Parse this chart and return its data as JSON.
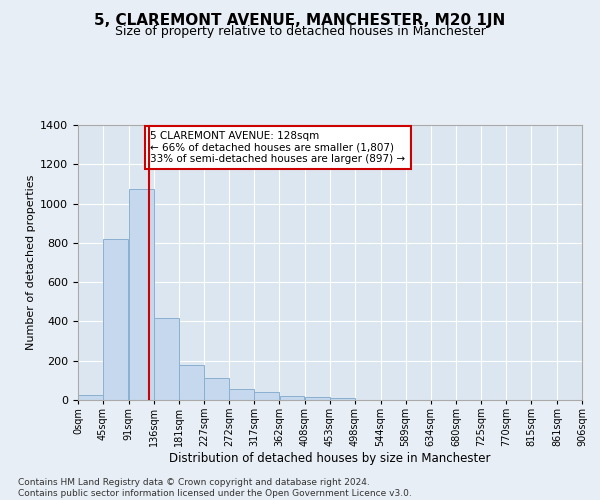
{
  "title": "5, CLAREMONT AVENUE, MANCHESTER, M20 1JN",
  "subtitle": "Size of property relative to detached houses in Manchester",
  "xlabel": "Distribution of detached houses by size in Manchester",
  "ylabel": "Number of detached properties",
  "bar_color": "#c5d8ed",
  "bar_edge_color": "#8ab0d0",
  "marker_line_color": "#cc0000",
  "marker_value": 128,
  "annotation_text": "5 CLAREMONT AVENUE: 128sqm\n← 66% of detached houses are smaller (1,807)\n33% of semi-detached houses are larger (897) →",
  "annotation_box_color": "#ffffff",
  "annotation_box_edge_color": "#cc0000",
  "footnote": "Contains HM Land Registry data © Crown copyright and database right 2024.\nContains public sector information licensed under the Open Government Licence v3.0.",
  "bins": [
    0,
    45,
    91,
    136,
    181,
    227,
    272,
    317,
    362,
    408,
    453,
    498,
    544,
    589,
    634,
    680,
    725,
    770,
    815,
    861,
    906
  ],
  "bin_labels": [
    "0sqm",
    "45sqm",
    "91sqm",
    "136sqm",
    "181sqm",
    "227sqm",
    "272sqm",
    "317sqm",
    "362sqm",
    "408sqm",
    "453sqm",
    "498sqm",
    "544sqm",
    "589sqm",
    "634sqm",
    "680sqm",
    "725sqm",
    "770sqm",
    "815sqm",
    "861sqm",
    "906sqm"
  ],
  "counts": [
    25,
    820,
    1075,
    420,
    180,
    110,
    55,
    40,
    20,
    15,
    10,
    0,
    0,
    0,
    0,
    0,
    0,
    0,
    0,
    0
  ],
  "ylim": [
    0,
    1400
  ],
  "yticks": [
    0,
    200,
    400,
    600,
    800,
    1000,
    1200,
    1400
  ],
  "background_color": "#e8eef5",
  "plot_background_color": "#dce6f0",
  "grid_color": "#ffffff",
  "title_fontsize": 11,
  "subtitle_fontsize": 9,
  "footnote_fontsize": 6.5
}
